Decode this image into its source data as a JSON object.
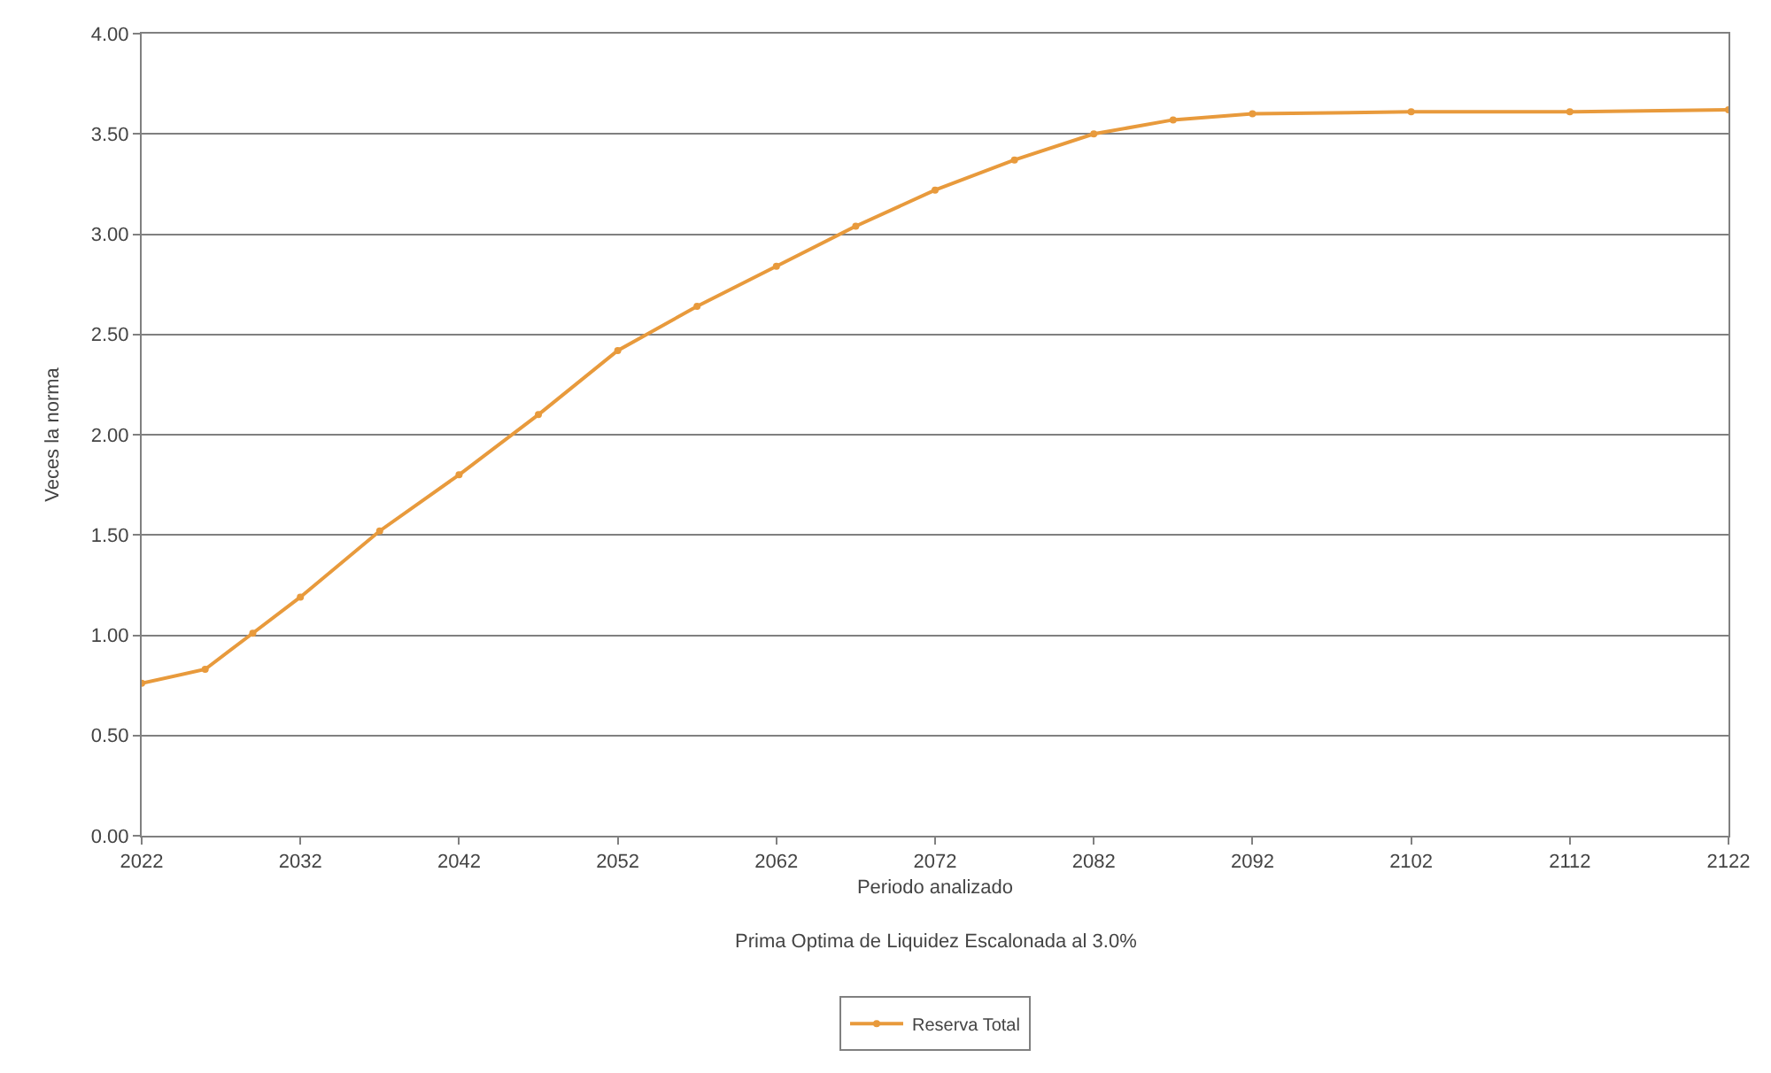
{
  "chart_data": {
    "type": "line",
    "xlabel": "Periodo analizado",
    "ylabel": "Veces la norma",
    "annotations": [
      "Prima Optima de Liquidez Escalonada al 3.0%"
    ],
    "x": [
      2022,
      2026,
      2029,
      2032,
      2037,
      2042,
      2047,
      2052,
      2057,
      2062,
      2067,
      2072,
      2077,
      2082,
      2087,
      2092,
      2102,
      2112,
      2122
    ],
    "series": [
      {
        "name": "Reserva Total",
        "color": "#e89a3c",
        "values": [
          0.76,
          0.83,
          1.01,
          1.19,
          1.52,
          1.8,
          2.1,
          2.42,
          2.64,
          2.84,
          3.04,
          3.22,
          3.37,
          3.5,
          3.57,
          3.6,
          3.61,
          3.61,
          3.62
        ]
      }
    ],
    "xlim": [
      2022,
      2122
    ],
    "xticks": [
      2022,
      2032,
      2042,
      2052,
      2062,
      2072,
      2082,
      2092,
      2102,
      2112,
      2122
    ],
    "ylim": [
      0,
      4
    ],
    "yticks": [
      {
        "value": 0,
        "label": "0.00"
      },
      {
        "value": 0.5,
        "label": "0.50"
      },
      {
        "value": 1,
        "label": "1.00"
      },
      {
        "value": 1.5,
        "label": "1.50"
      },
      {
        "value": 2,
        "label": "2.00"
      },
      {
        "value": 2.5,
        "label": "2.50"
      },
      {
        "value": 3,
        "label": "3.00"
      },
      {
        "value": 3.5,
        "label": "3.50"
      },
      {
        "value": 4,
        "label": "4.00"
      }
    ],
    "grid": "y",
    "legend": "bottom",
    "marker": "circle",
    "line_style": "solid"
  }
}
